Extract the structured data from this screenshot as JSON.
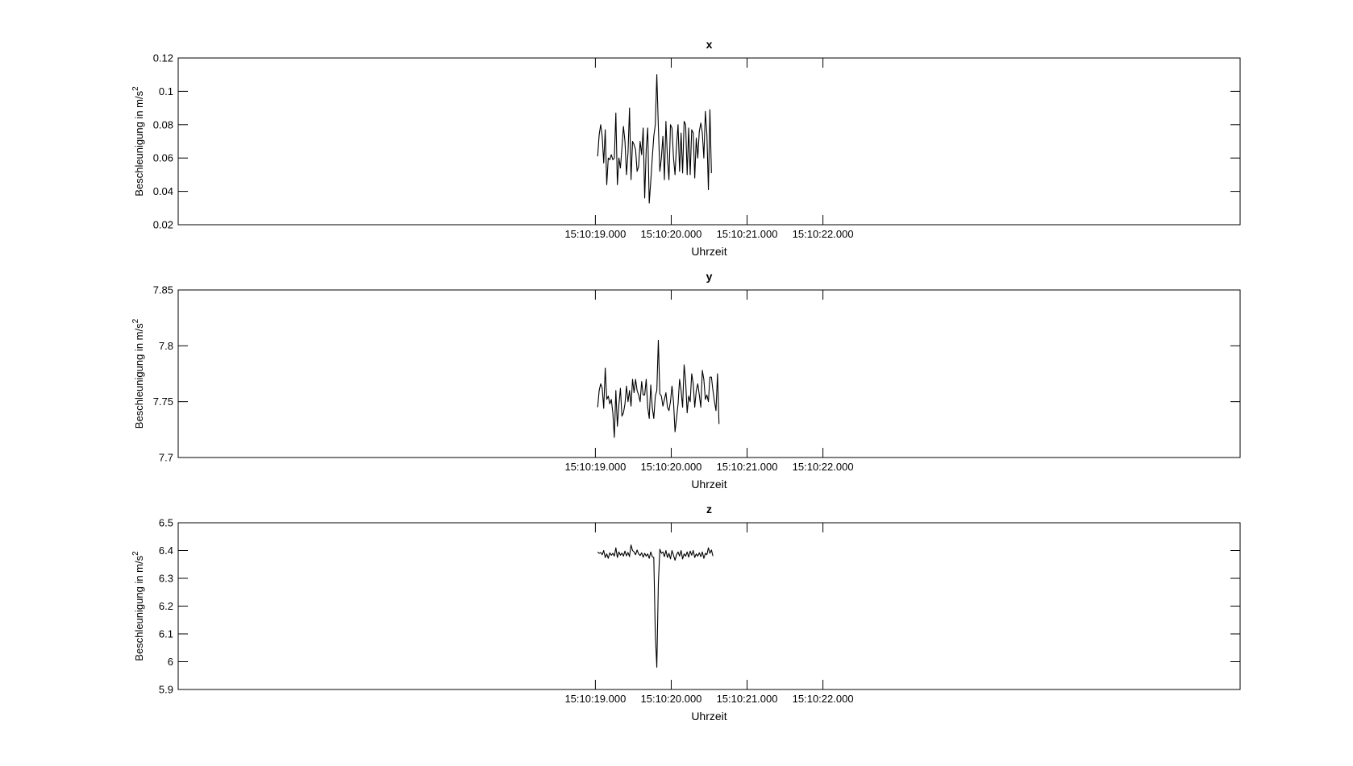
{
  "chart_data": [
    {
      "type": "line",
      "title": "x",
      "xlabel": "Uhrzeit",
      "ylabel": "Beschleunigung in m/s",
      "ylabel_sup": "2",
      "xlim": [
        -5.5,
        8.5
      ],
      "ylim": [
        0.02,
        0.12
      ],
      "xticks": [
        0,
        1,
        2,
        3
      ],
      "xtick_labels": [
        "15:10:19.000",
        "15:10:20.000",
        "15:10:21.000",
        "15:10:22.000"
      ],
      "yticks": [
        0.02,
        0.04,
        0.06,
        0.08,
        0.1,
        0.12
      ],
      "ytick_labels": [
        "0.02",
        "0.04",
        "0.06",
        "0.08",
        "0.1",
        "0.12"
      ],
      "line_color": "#000000",
      "series": [
        {
          "x_start": 0.03,
          "x_step": 0.02,
          "values": [
            0.061,
            0.074,
            0.08,
            0.073,
            0.057,
            0.077,
            0.044,
            0.06,
            0.059,
            0.062,
            0.059,
            0.06,
            0.087,
            0.044,
            0.06,
            0.054,
            0.066,
            0.079,
            0.07,
            0.05,
            0.063,
            0.09,
            0.047,
            0.07,
            0.068,
            0.065,
            0.052,
            0.055,
            0.07,
            0.062,
            0.078,
            0.036,
            0.065,
            0.078,
            0.033,
            0.046,
            0.06,
            0.073,
            0.08,
            0.11,
            0.079,
            0.052,
            0.06,
            0.073,
            0.047,
            0.082,
            0.06,
            0.047,
            0.08,
            0.078,
            0.06,
            0.05,
            0.068,
            0.08,
            0.052,
            0.075,
            0.051,
            0.082,
            0.08,
            0.05,
            0.078,
            0.05,
            0.077,
            0.075,
            0.048,
            0.072,
            0.06,
            0.076,
            0.081,
            0.075,
            0.06,
            0.088,
            0.074,
            0.041,
            0.089,
            0.051
          ]
        }
      ]
    },
    {
      "type": "line",
      "title": "y",
      "xlabel": "Uhrzeit",
      "ylabel": "Beschleunigung in m/s",
      "ylabel_sup": "2",
      "xlim": [
        -5.5,
        8.5
      ],
      "ylim": [
        7.7,
        7.85
      ],
      "xticks": [
        0,
        1,
        2,
        3
      ],
      "xtick_labels": [
        "15:10:19.000",
        "15:10:20.000",
        "15:10:21.000",
        "15:10:22.000"
      ],
      "yticks": [
        7.7,
        7.75,
        7.8,
        7.85
      ],
      "ytick_labels": [
        "7.7",
        "7.75",
        "7.8",
        "7.85"
      ],
      "line_color": "#000000",
      "series": [
        {
          "x_start": 0.03,
          "x_step": 0.02,
          "values": [
            7.745,
            7.76,
            7.766,
            7.762,
            7.744,
            7.78,
            7.752,
            7.755,
            7.748,
            7.752,
            7.74,
            7.718,
            7.76,
            7.728,
            7.747,
            7.762,
            7.737,
            7.74,
            7.748,
            7.764,
            7.75,
            7.76,
            7.746,
            7.77,
            7.758,
            7.77,
            7.76,
            7.756,
            7.75,
            7.768,
            7.756,
            7.756,
            7.77,
            7.745,
            7.735,
            7.765,
            7.745,
            7.735,
            7.755,
            7.76,
            7.805,
            7.757,
            7.755,
            7.746,
            7.752,
            7.758,
            7.745,
            7.742,
            7.75,
            7.764,
            7.75,
            7.723,
            7.735,
            7.748,
            7.77,
            7.76,
            7.745,
            7.783,
            7.768,
            7.74,
            7.755,
            7.75,
            7.775,
            7.766,
            7.745,
            7.76,
            7.766,
            7.756,
            7.745,
            7.778,
            7.77,
            7.752,
            7.756,
            7.75,
            7.772,
            7.772,
            7.76,
            7.75,
            7.742,
            7.775,
            7.73
          ]
        }
      ]
    },
    {
      "type": "line",
      "title": "z",
      "xlabel": "Uhrzeit",
      "ylabel": "Beschleunigung in m/s",
      "ylabel_sup": "2",
      "xlim": [
        -5.5,
        8.5
      ],
      "ylim": [
        5.9,
        6.5
      ],
      "xticks": [
        0,
        1,
        2,
        3
      ],
      "xtick_labels": [
        "15:10:19.000",
        "15:10:20.000",
        "15:10:21.000",
        "15:10:22.000"
      ],
      "yticks": [
        5.9,
        6.0,
        6.1,
        6.2,
        6.3,
        6.4,
        6.5
      ],
      "ytick_labels": [
        "5.9",
        "6",
        "6.1",
        "6.2",
        "6.3",
        "6.4",
        "6.5"
      ],
      "line_color": "#000000",
      "series": [
        {
          "x_start": 0.03,
          "x_step": 0.02,
          "values": [
            6.395,
            6.39,
            6.393,
            6.385,
            6.4,
            6.375,
            6.388,
            6.372,
            6.392,
            6.383,
            6.39,
            6.38,
            6.41,
            6.375,
            6.395,
            6.383,
            6.391,
            6.38,
            6.398,
            6.381,
            6.393,
            6.378,
            6.42,
            6.4,
            6.395,
            6.385,
            6.402,
            6.388,
            6.382,
            6.392,
            6.376,
            6.39,
            6.38,
            6.388,
            6.372,
            6.395,
            6.378,
            6.375,
            6.1,
            5.98,
            6.28,
            6.405,
            6.39,
            6.395,
            6.378,
            6.4,
            6.375,
            6.39,
            6.37,
            6.4,
            6.383,
            6.365,
            6.385,
            6.395,
            6.38,
            6.4,
            6.37,
            6.388,
            6.38,
            6.395,
            6.376,
            6.398,
            6.383,
            6.4,
            6.375,
            6.388,
            6.38,
            6.392,
            6.378,
            6.395,
            6.372,
            6.39,
            6.385,
            6.41,
            6.39,
            6.402,
            6.38
          ]
        }
      ]
    }
  ]
}
